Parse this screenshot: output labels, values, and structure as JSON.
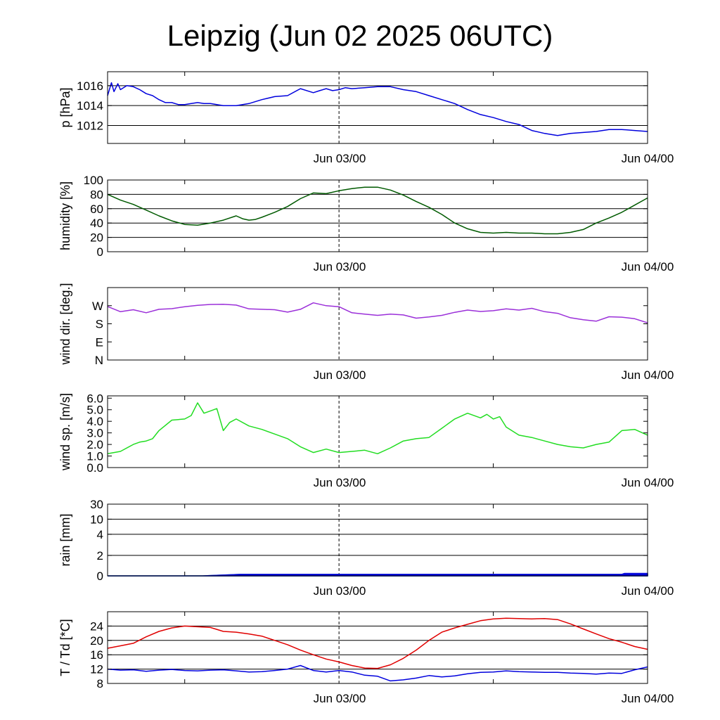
{
  "title": "Leipzig (Jun 02 2025 06UTC)",
  "colors": {
    "pressure": "#0000dd",
    "humidity": "#005a00",
    "wind_dir": "#9b30d9",
    "wind_speed": "#22dd22",
    "rain_a": "#1a9080",
    "rain_b": "#0000dd",
    "temperature": "#e00000",
    "dewpoint": "#0000dd",
    "grid": "#000000"
  },
  "chart_data": [
    {
      "type": "line",
      "name": "pressure",
      "ylabel": "p [hPa]",
      "ylim": [
        1010.2,
        1017.4
      ],
      "yticks": [
        1012,
        1014,
        1016
      ],
      "ytick_labels": [
        "1012",
        "1014",
        "1016"
      ],
      "gridlines": [
        1012,
        1014,
        1016
      ],
      "x_tick_labels": [
        "Jun 03/00",
        "Jun 04/00"
      ],
      "x_unit": "hours since Jun 02 06UTC",
      "xlim": [
        0,
        42
      ],
      "series": [
        {
          "color_key": "pressure",
          "x": [
            0,
            0.3,
            0.5,
            0.8,
            1,
            1.5,
            2,
            2.5,
            3,
            3.5,
            4,
            4.5,
            5,
            5.5,
            6,
            6.5,
            7,
            7.5,
            8,
            9,
            10,
            11,
            12,
            13,
            14,
            15,
            16,
            16.5,
            17,
            17.5,
            18,
            18.5,
            19,
            20,
            21,
            22,
            23,
            24,
            25,
            26,
            27,
            28,
            29,
            30,
            31,
            32,
            33,
            34,
            35,
            36,
            37,
            38,
            39,
            40,
            41,
            42
          ],
          "y": [
            1015.0,
            1016.3,
            1015.4,
            1016.2,
            1015.6,
            1016.0,
            1015.9,
            1015.6,
            1015.2,
            1015.0,
            1014.6,
            1014.3,
            1014.3,
            1014.1,
            1014.1,
            1014.2,
            1014.3,
            1014.2,
            1014.2,
            1014.0,
            1014.0,
            1014.2,
            1014.6,
            1014.9,
            1015.0,
            1015.7,
            1015.3,
            1015.5,
            1015.7,
            1015.5,
            1015.6,
            1015.8,
            1015.7,
            1015.8,
            1015.9,
            1015.9,
            1015.6,
            1015.4,
            1015.0,
            1014.6,
            1014.2,
            1013.6,
            1013.1,
            1012.8,
            1012.4,
            1012.1,
            1011.5,
            1011.2,
            1011.0,
            1011.2,
            1011.3,
            1011.4,
            1011.6,
            1011.6,
            1011.5,
            1011.4
          ]
        }
      ]
    },
    {
      "type": "line",
      "name": "humidity",
      "ylabel": "humidity [%]",
      "ylim": [
        0,
        100
      ],
      "yticks": [
        0,
        20,
        40,
        60,
        80,
        100
      ],
      "ytick_labels": [
        "0",
        "20",
        "40",
        "60",
        "80",
        "100"
      ],
      "gridlines": [
        20,
        40,
        60,
        80
      ],
      "x_tick_labels": [
        "Jun 03/00",
        "Jun 04/00"
      ],
      "xlim": [
        0,
        42
      ],
      "series": [
        {
          "color_key": "humidity",
          "x": [
            0,
            1,
            2,
            3,
            4,
            5,
            6,
            7,
            8,
            9,
            10,
            10.5,
            11,
            11.5,
            12,
            13,
            14,
            15,
            16,
            17,
            18,
            19,
            20,
            21,
            22,
            23,
            24,
            25,
            26,
            27,
            28,
            29,
            30,
            31,
            32,
            33,
            34,
            35,
            36,
            37,
            38,
            39,
            40,
            41,
            42
          ],
          "y": [
            80,
            72,
            66,
            58,
            50,
            43,
            38,
            37,
            40,
            44,
            50,
            46,
            44,
            45,
            48,
            55,
            63,
            74,
            82,
            81,
            85,
            88,
            90,
            90,
            86,
            79,
            70,
            62,
            52,
            40,
            32,
            27,
            26,
            27,
            26,
            26,
            25,
            25,
            27,
            31,
            40,
            47,
            55,
            65,
            75
          ]
        }
      ]
    },
    {
      "type": "line",
      "name": "wind direction",
      "ylabel": "wind dir. [deg.]",
      "ylim": [
        0,
        360
      ],
      "yticks": [
        0,
        90,
        180,
        270
      ],
      "ytick_labels": [
        "N",
        "E",
        "S",
        "W"
      ],
      "gridlines": [],
      "x_tick_labels": [
        "Jun 03/00",
        "Jun 04/00"
      ],
      "xlim": [
        0,
        42
      ],
      "series": [
        {
          "color_key": "wind_dir",
          "x": [
            0,
            1,
            2,
            3,
            4,
            5,
            6,
            7,
            8,
            9,
            10,
            11,
            12,
            13,
            14,
            15,
            16,
            17,
            18,
            19,
            20,
            21,
            22,
            23,
            24,
            25,
            26,
            27,
            28,
            29,
            30,
            31,
            32,
            33,
            34,
            35,
            36,
            37,
            38,
            39,
            40,
            41,
            42
          ],
          "y": [
            266,
            240,
            250,
            235,
            252,
            255,
            265,
            272,
            276,
            277,
            273,
            254,
            252,
            250,
            238,
            252,
            284,
            270,
            265,
            235,
            228,
            222,
            228,
            224,
            208,
            214,
            222,
            237,
            248,
            241,
            245,
            254,
            248,
            257,
            240,
            232,
            210,
            200,
            193,
            215,
            213,
            205,
            185
          ]
        }
      ]
    },
    {
      "type": "line",
      "name": "wind speed",
      "ylabel": "wind sp. [m/s]",
      "ylim": [
        0,
        6.2
      ],
      "yticks": [
        0,
        1,
        2,
        3,
        4,
        5,
        6
      ],
      "ytick_labels": [
        "0.0",
        "1.0",
        "2.0",
        "3.0",
        "4.0",
        "5.0",
        "6.0"
      ],
      "gridlines": [],
      "x_tick_labels": [
        "Jun 03/00",
        "Jun 04/00"
      ],
      "xlim": [
        0,
        42
      ],
      "series": [
        {
          "color_key": "wind_speed",
          "x": [
            0,
            1,
            2,
            2.5,
            3,
            3.5,
            4,
            5,
            6,
            6.5,
            7,
            7.5,
            8,
            8.5,
            9,
            9.5,
            10,
            11,
            12,
            13,
            14,
            15,
            16,
            17,
            18,
            19,
            20,
            21,
            22,
            23,
            24,
            25,
            26,
            27,
            28,
            29,
            29.5,
            30,
            30.5,
            31,
            32,
            33,
            34,
            35,
            36,
            37,
            38,
            39,
            40,
            41,
            42
          ],
          "y": [
            1.2,
            1.4,
            2.0,
            2.2,
            2.3,
            2.5,
            3.2,
            4.1,
            4.2,
            4.5,
            5.6,
            4.7,
            4.9,
            5.1,
            3.2,
            3.9,
            4.2,
            3.6,
            3.3,
            2.9,
            2.5,
            1.8,
            1.3,
            1.6,
            1.3,
            1.4,
            1.5,
            1.2,
            1.7,
            2.3,
            2.5,
            2.6,
            3.4,
            4.2,
            4.7,
            4.3,
            4.6,
            4.2,
            4.4,
            3.5,
            2.8,
            2.6,
            2.3,
            2.0,
            1.8,
            1.7,
            2.0,
            2.2,
            3.2,
            3.3,
            2.8
          ]
        }
      ]
    },
    {
      "type": "area",
      "name": "rain",
      "ylabel": "rain [mm]",
      "ylim": [
        0,
        30
      ],
      "yticks": [
        0,
        2,
        4,
        10,
        30
      ],
      "ytick_labels": [
        "0",
        "2",
        "4",
        "10",
        "30"
      ],
      "y_scale": "nonlinear",
      "gridlines": [
        2,
        4,
        10,
        30
      ],
      "x_tick_labels": [
        "Jun 03/00",
        "Jun 04/00"
      ],
      "xlim": [
        0,
        42
      ],
      "series": [
        {
          "color_key": "rain_a",
          "x": [
            0,
            7.4,
            9.5,
            10.3,
            12,
            42
          ],
          "y": [
            0,
            0,
            0.1,
            0.15,
            0.15,
            0.15
          ]
        },
        {
          "color_key": "rain_b",
          "x": [
            0,
            7.4,
            9.5,
            10.3,
            12,
            20,
            30,
            40,
            40.2,
            42
          ],
          "y": [
            0,
            0,
            0.1,
            0.15,
            0.15,
            0.15,
            0.15,
            0.15,
            0.25,
            0.25
          ]
        }
      ]
    },
    {
      "type": "line",
      "name": "temperature",
      "ylabel": "T / Td [*C]",
      "ylim": [
        8,
        28
      ],
      "yticks": [
        8,
        12,
        16,
        20,
        24
      ],
      "ytick_labels": [
        "8",
        "12",
        "16",
        "20",
        "24"
      ],
      "gridlines": [
        12,
        16,
        20,
        24
      ],
      "x_tick_labels": [
        "Jun 03/00",
        "Jun 04/00"
      ],
      "xlim": [
        0,
        42
      ],
      "series": [
        {
          "color_key": "temperature",
          "x": [
            0,
            1,
            2,
            3,
            4,
            5,
            6,
            7,
            8,
            9,
            10,
            11,
            12,
            13,
            14,
            15,
            16,
            17,
            18,
            19,
            20,
            21,
            22,
            23,
            24,
            25,
            26,
            27,
            28,
            29,
            30,
            31,
            32,
            33,
            34,
            35,
            36,
            37,
            38,
            39,
            40,
            41,
            42
          ],
          "y": [
            17.8,
            18.5,
            19.2,
            21.0,
            22.5,
            23.5,
            24.0,
            23.8,
            23.6,
            22.5,
            22.3,
            21.8,
            21.2,
            20.0,
            18.8,
            17.3,
            16.0,
            14.8,
            14.0,
            13.0,
            12.3,
            12.2,
            13.2,
            15.0,
            17.3,
            20.0,
            22.3,
            23.5,
            24.5,
            25.5,
            26.0,
            26.2,
            26.1,
            26.0,
            26.1,
            25.8,
            24.6,
            23.2,
            21.8,
            20.5,
            19.5,
            18.3,
            17.5
          ]
        },
        {
          "color_key": "dewpoint",
          "x": [
            0,
            1,
            2,
            3,
            4,
            5,
            6,
            7,
            8,
            9,
            10,
            11,
            12,
            13,
            14,
            15,
            16,
            17,
            18,
            19,
            20,
            21,
            22,
            23,
            24,
            25,
            26,
            27,
            28,
            29,
            30,
            31,
            32,
            33,
            34,
            35,
            36,
            37,
            38,
            39,
            40,
            41,
            42
          ],
          "y": [
            12.0,
            11.7,
            11.8,
            11.4,
            11.7,
            11.9,
            11.6,
            11.5,
            11.7,
            11.8,
            11.5,
            11.2,
            11.3,
            11.6,
            12.0,
            13.0,
            11.6,
            11.2,
            11.6,
            11.2,
            10.3,
            10.0,
            8.7,
            9.0,
            9.5,
            10.2,
            9.8,
            10.1,
            10.7,
            11.1,
            11.2,
            11.5,
            11.3,
            11.2,
            11.1,
            11.1,
            10.9,
            10.8,
            10.6,
            10.9,
            10.8,
            11.8,
            12.6
          ]
        }
      ]
    }
  ]
}
